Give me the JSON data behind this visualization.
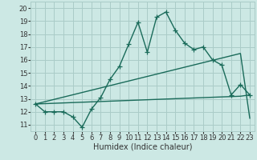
{
  "background_color": "#cce8e4",
  "grid_color": "#aaccc8",
  "line_color": "#1a6b5a",
  "marker": "+",
  "marker_size": 4,
  "line_width": 1.0,
  "xlabel": "Humidex (Indice chaleur)",
  "xlabel_fontsize": 7,
  "tick_fontsize": 6,
  "xlim": [
    -0.5,
    23.5
  ],
  "ylim": [
    10.5,
    20.5
  ],
  "xticks": [
    0,
    1,
    2,
    3,
    4,
    5,
    6,
    7,
    8,
    9,
    10,
    11,
    12,
    13,
    14,
    15,
    16,
    17,
    18,
    19,
    20,
    21,
    22,
    23
  ],
  "yticks": [
    11,
    12,
    13,
    14,
    15,
    16,
    17,
    18,
    19,
    20
  ],
  "series1_x": [
    0,
    1,
    2,
    3,
    4,
    5,
    6,
    7,
    8,
    9,
    10,
    11,
    12,
    13,
    14,
    15,
    16,
    17,
    18,
    19,
    20,
    21,
    22,
    23
  ],
  "series1_y": [
    12.6,
    12.0,
    12.0,
    12.0,
    11.6,
    10.8,
    12.2,
    13.1,
    14.5,
    15.5,
    17.2,
    18.9,
    16.6,
    19.3,
    19.7,
    18.3,
    17.3,
    16.8,
    17.0,
    16.0,
    15.6,
    13.3,
    14.1,
    13.3
  ],
  "series2_x": [
    0,
    22,
    23
  ],
  "series2_y": [
    12.6,
    16.5,
    11.5
  ],
  "series3_x": [
    0,
    22,
    23
  ],
  "series3_y": [
    12.6,
    13.2,
    13.3
  ]
}
